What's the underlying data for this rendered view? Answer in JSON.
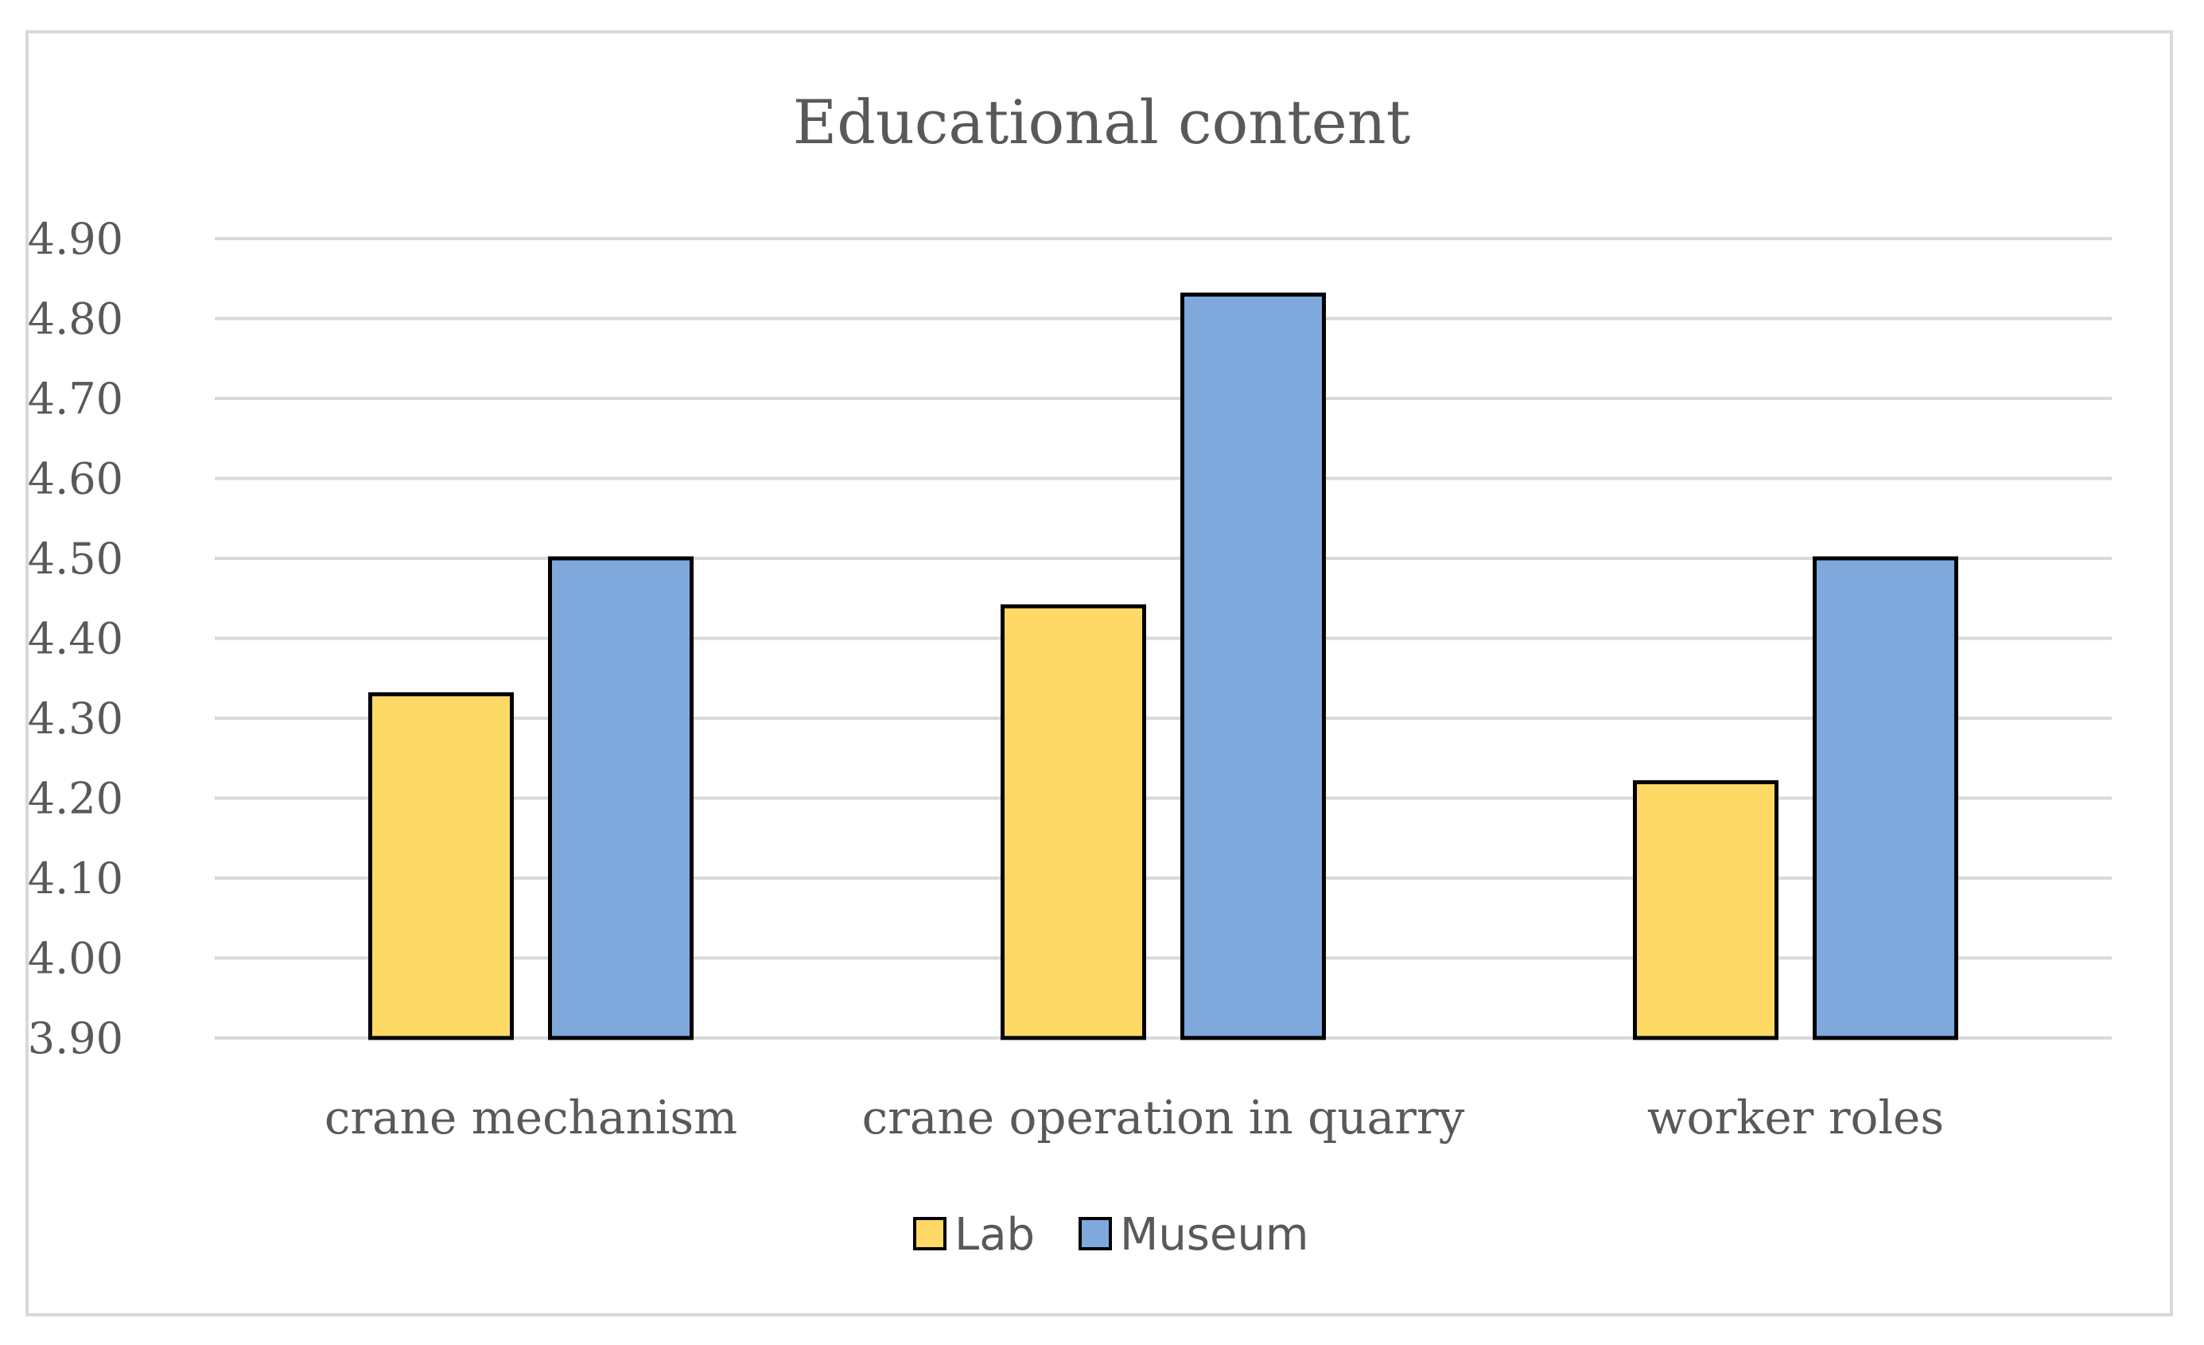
{
  "chart_data": {
    "type": "bar",
    "title": "Educational content",
    "categories": [
      "crane mechanism",
      "crane operation in quarry",
      "worker roles"
    ],
    "series": [
      {
        "name": "Lab",
        "values": [
          4.33,
          4.44,
          4.22
        ],
        "color": "#FFD966"
      },
      {
        "name": "Museum",
        "values": [
          4.5,
          4.83,
          4.5
        ],
        "color": "#7FA9DD"
      }
    ],
    "ylim": [
      3.9,
      4.9
    ],
    "yticks": [
      "3.90",
      "4.00",
      "4.10",
      "4.20",
      "4.30",
      "4.40",
      "4.50",
      "4.60",
      "4.70",
      "4.80",
      "4.90"
    ],
    "grid": true,
    "legend": "bottom-center"
  }
}
